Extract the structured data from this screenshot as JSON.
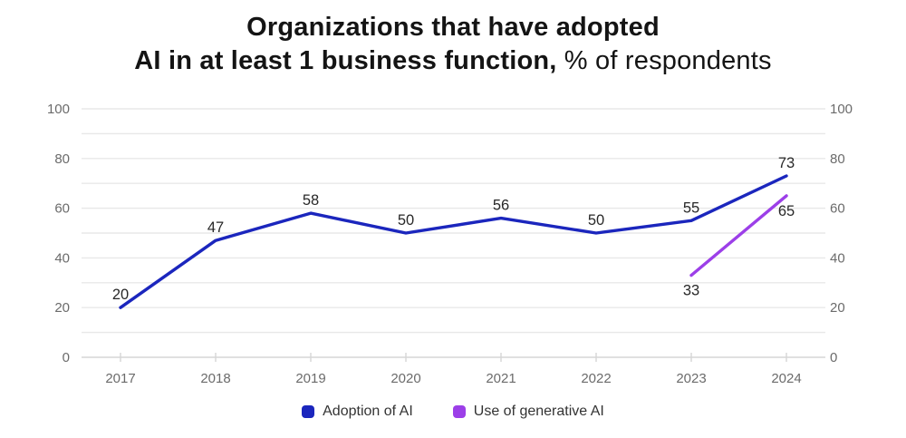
{
  "title": {
    "line1": "Organizations that have adopted",
    "line2_bold": "AI in at least 1 business function,",
    "line2_normal": " % of respondents"
  },
  "legend": [
    {
      "label": "Adoption of AI",
      "color": "#1b26bd"
    },
    {
      "label": "Use of generative AI",
      "color": "#9c3fe8"
    }
  ],
  "chart_data": {
    "type": "line",
    "x": [
      "2017",
      "2018",
      "2019",
      "2020",
      "2021",
      "2022",
      "2023",
      "2024"
    ],
    "series": [
      {
        "name": "Adoption of AI",
        "color": "#1b26bd",
        "values": [
          20,
          47,
          58,
          50,
          56,
          50,
          55,
          73
        ],
        "label_position": "above"
      },
      {
        "name": "Use of generative AI",
        "color": "#9c3fe8",
        "values": [
          null,
          null,
          null,
          null,
          null,
          null,
          33,
          65
        ],
        "label_position": "below"
      }
    ],
    "title": "Organizations that have adopted AI in at least 1 business function, % of respondents",
    "xlabel": "",
    "ylabel": "",
    "ylim": [
      0,
      100
    ],
    "yticks": [
      0,
      20,
      40,
      60,
      80,
      100
    ],
    "grid_step": 10,
    "grid": true,
    "dual_y_axis": true,
    "legend_position": "bottom",
    "colors": {
      "gridline": "#e8e8e8",
      "baseline": "#d6d6d6",
      "tick": "#d6d6d6",
      "axis_text": "#6b6b6b",
      "data_label": "#282828"
    }
  }
}
